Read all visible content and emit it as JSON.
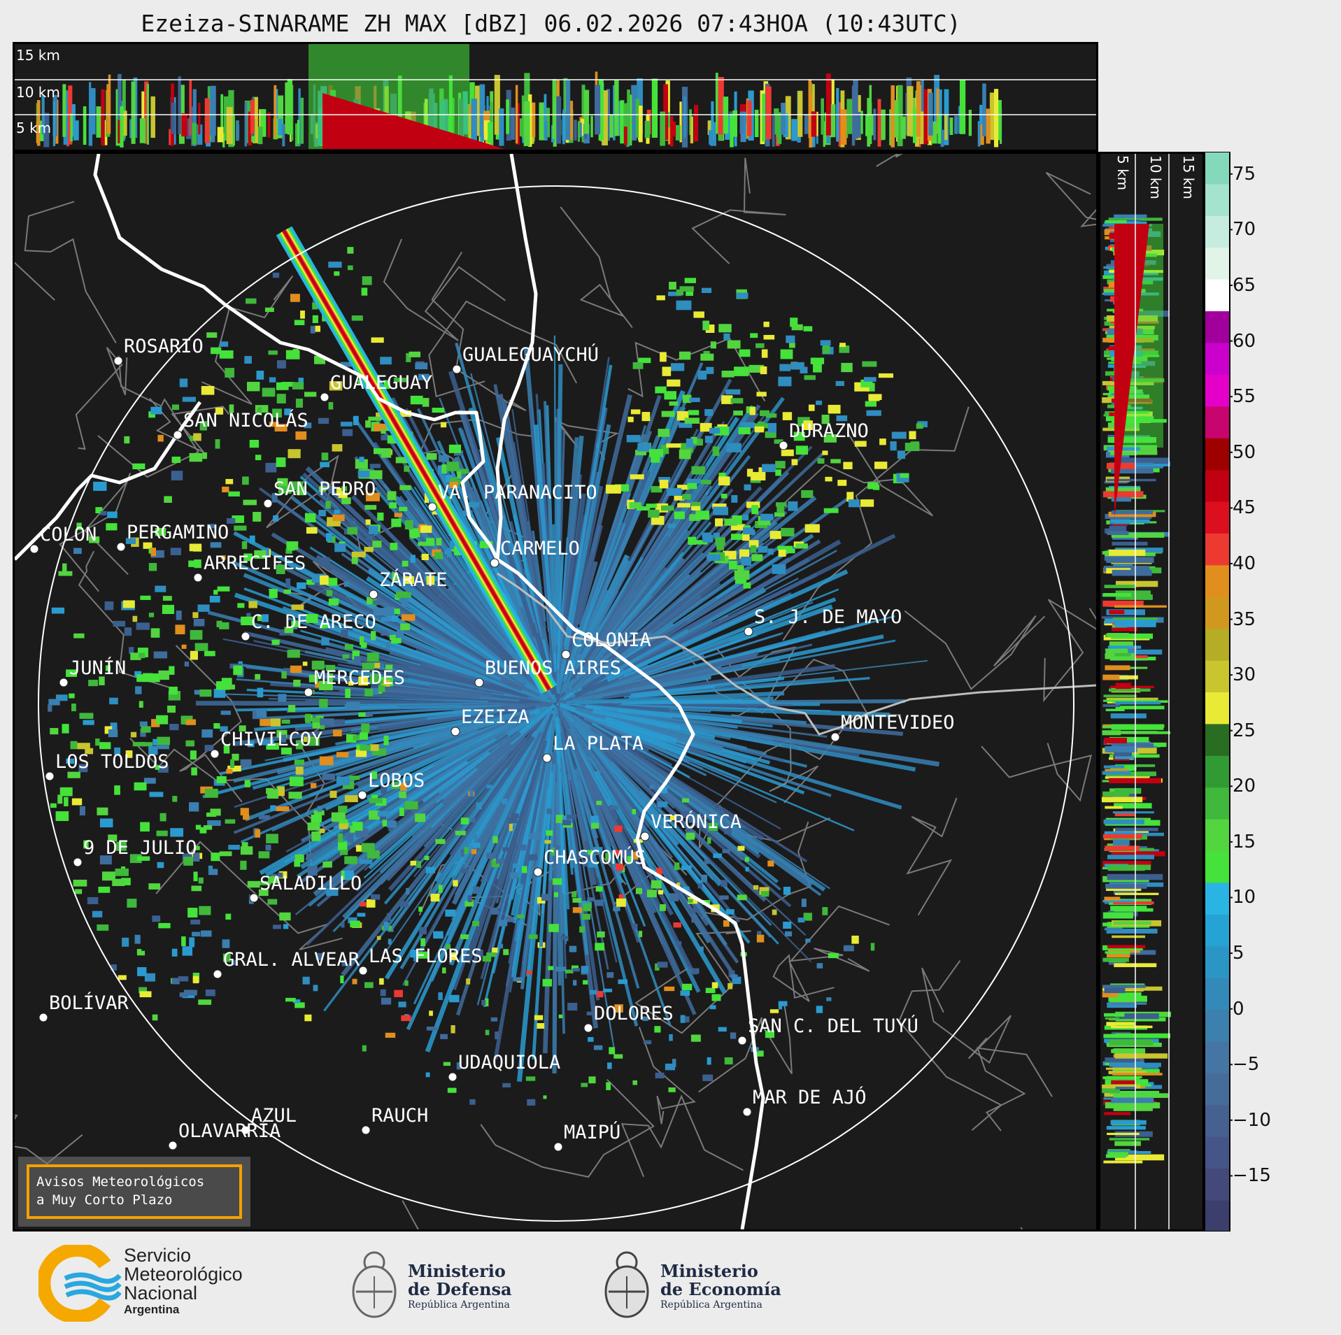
{
  "title": "Ezeiza-SINARAME ZH MAX [dBZ] 06.02.2026 07:43HOA (10:43UTC)",
  "top_panel": {
    "height_labels": [
      "15 km",
      "10 km",
      "5 km"
    ]
  },
  "side_panel": {
    "height_labels": [
      "5 km",
      "10 km",
      "15 km"
    ]
  },
  "colorbar": {
    "ticks": [
      "75",
      "70",
      "65",
      "60",
      "55",
      "50",
      "45",
      "40",
      "35",
      "30",
      "25",
      "20",
      "15",
      "10",
      "5",
      "0",
      "−5",
      "−10",
      "−15"
    ],
    "range": [
      -20,
      77
    ],
    "colors": [
      "#3c3f6b",
      "#434a79",
      "#465588",
      "#466090",
      "#466c9a",
      "#4475a3",
      "#3c80ad",
      "#3389b8",
      "#2b96c6",
      "#25a3d4",
      "#29b4e4",
      "#44e23a",
      "#52d53f",
      "#3fb83b",
      "#329a33",
      "#286d22",
      "#e9ea35",
      "#c8c52e",
      "#b5ad25",
      "#d1981e",
      "#e08e1d",
      "#ed3a31",
      "#dc0f1e",
      "#c10011",
      "#9e0000",
      "#c8046e",
      "#e400c8",
      "#cc00cc",
      "#a1009c",
      "#ffffff",
      "#e2f3e8",
      "#c6ece0",
      "#a4e3cd",
      "#85d9bb"
    ]
  },
  "cities": [
    {
      "name": "ROSARIO"
    },
    {
      "name": "GUALEGUAYCHÚ"
    },
    {
      "name": "GUALEGUAY"
    },
    {
      "name": "SAN NICOLÁS"
    },
    {
      "name": "DURAZNO"
    },
    {
      "name": "SAN PEDRO"
    },
    {
      "name": "VA. PARANACITO"
    },
    {
      "name": "COLON"
    },
    {
      "name": "PERGAMINO"
    },
    {
      "name": "CARMELO"
    },
    {
      "name": "ARRECIFES"
    },
    {
      "name": "ZÁRATE"
    },
    {
      "name": "S. J. DE MAYO"
    },
    {
      "name": "C. DE ARECO"
    },
    {
      "name": "COLONIA"
    },
    {
      "name": "JUNÍN"
    },
    {
      "name": "BUENOS AIRES"
    },
    {
      "name": "MERCEDES"
    },
    {
      "name": "EZEIZA"
    },
    {
      "name": "MONTEVIDEO"
    },
    {
      "name": "CHIVILCOY"
    },
    {
      "name": "LA PLATA"
    },
    {
      "name": "LOS TOLDOS"
    },
    {
      "name": "LOBOS"
    },
    {
      "name": "VERÓNICA"
    },
    {
      "name": "9 DE JULIO"
    },
    {
      "name": "CHASCOMÚS"
    },
    {
      "name": "SALADILLO"
    },
    {
      "name": "GRAL. ALVEAR"
    },
    {
      "name": "LAS FLORES"
    },
    {
      "name": "BOLÍVAR"
    },
    {
      "name": "DOLORES"
    },
    {
      "name": "SAN C. DEL TUYÚ"
    },
    {
      "name": "UDAQUIOLA"
    },
    {
      "name": "MAR DE AJÓ"
    },
    {
      "name": "AZUL"
    },
    {
      "name": "RAUCH"
    },
    {
      "name": "OLAVARRÍA"
    },
    {
      "name": "MAIPÚ"
    }
  ],
  "notice": {
    "line1": "Avisos Meteorológicos",
    "line2": "a Muy Corto Plazo"
  },
  "logos": {
    "smn": {
      "line1": "Servicio",
      "line2": "Meteorológico",
      "line3": "Nacional",
      "line4": "Argentina"
    },
    "defensa": {
      "line1": "Ministerio",
      "line2": "de Defensa",
      "line3": "República Argentina"
    },
    "economia": {
      "line1": "Ministerio",
      "line2": "de Economía",
      "line3": "República Argentina"
    }
  }
}
